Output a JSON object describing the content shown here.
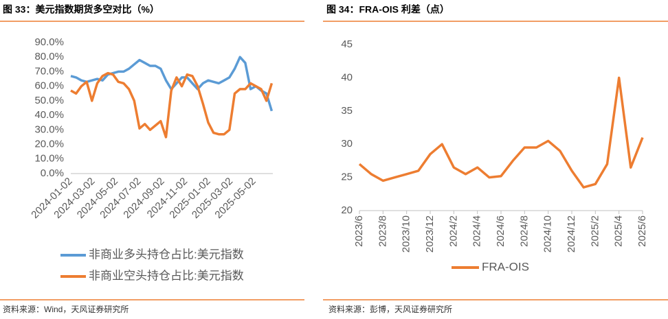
{
  "chart_data": [
    {
      "type": "line",
      "title": "图 33：美元指数期货多空对比（%）",
      "source": "资料来源：Wind，天风证券研究所",
      "x": [
        "2024-01-02",
        "2024-01-16",
        "2024-01-30",
        "2024-02-13",
        "2024-02-27",
        "2024-03-12",
        "2024-03-26",
        "2024-04-09",
        "2024-04-23",
        "2024-05-07",
        "2024-05-21",
        "2024-06-04",
        "2024-06-18",
        "2024-07-02",
        "2024-07-16",
        "2024-07-30",
        "2024-08-13",
        "2024-08-27",
        "2024-09-10",
        "2024-09-24",
        "2024-10-08",
        "2024-10-22",
        "2024-11-05",
        "2024-11-19",
        "2024-12-03",
        "2024-12-17",
        "2024-12-31",
        "2025-01-14",
        "2025-01-28",
        "2025-02-11",
        "2025-02-25",
        "2025-03-11",
        "2025-03-25",
        "2025-04-08",
        "2025-04-22",
        "2025-05-06",
        "2025-05-20",
        "2025-06-03",
        "2025-06-17"
      ],
      "xlim": [
        "2024-01-02",
        "2025-06-20"
      ],
      "xticks": [
        "2024-01-02",
        "2024-03-02",
        "2024-05-02",
        "2024-07-02",
        "2024-09-02",
        "2024-11-02",
        "2025-01-02",
        "2025-03-02",
        "2025-05-02"
      ],
      "ylim": [
        0,
        90
      ],
      "yticks": [
        {
          "value": 0,
          "label": "0.0%"
        },
        {
          "value": 10,
          "label": "10.0%"
        },
        {
          "value": 20,
          "label": "20.0%"
        },
        {
          "value": 30,
          "label": "30.0%"
        },
        {
          "value": 40,
          "label": "40.0%"
        },
        {
          "value": 50,
          "label": "50.0%"
        },
        {
          "value": 60,
          "label": "60.0%"
        },
        {
          "value": 70,
          "label": "70.0%"
        },
        {
          "value": 80,
          "label": "80.0%"
        },
        {
          "value": 90,
          "label": "90.0%"
        }
      ],
      "grid": false,
      "series": [
        {
          "name": "非商业多头持仓占比:美元指数",
          "color": "#5b9bd5",
          "values": [
            67,
            66,
            64,
            63,
            64,
            65,
            64,
            68,
            69,
            70,
            70,
            72,
            75,
            78,
            76,
            74,
            74,
            72,
            64,
            58,
            62,
            66,
            66,
            62,
            58,
            62,
            64,
            63,
            62,
            64,
            66,
            72,
            80,
            76,
            58,
            60,
            57,
            55,
            43
          ]
        },
        {
          "name": "非商业空头持仓占比:美元指数",
          "color": "#ed7d31",
          "values": [
            57,
            55,
            60,
            63,
            50,
            62,
            67,
            69,
            68,
            63,
            62,
            58,
            50,
            31,
            34,
            30,
            33,
            36,
            25,
            57,
            66,
            60,
            68,
            67,
            60,
            48,
            35,
            28,
            27,
            27,
            30,
            55,
            58,
            58,
            62,
            60,
            58,
            50,
            62
          ]
        }
      ]
    },
    {
      "type": "line",
      "title": "图 34：FRA-OIS 利差（点）",
      "source": "资料来源：彭博，天风证券研究所",
      "x": [
        "2023/6",
        "2023/7",
        "2023/8",
        "2023/9",
        "2023/10",
        "2023/11",
        "2023/12",
        "2024/1",
        "2024/2",
        "2024/3",
        "2024/4",
        "2024/5",
        "2024/6",
        "2024/7",
        "2024/8",
        "2024/9",
        "2024/10",
        "2024/11",
        "2024/12",
        "2025/1",
        "2025/2",
        "2025/3",
        "2025/4",
        "2025/5",
        "2025/6"
      ],
      "xticks": [
        "2023/6",
        "2023/8",
        "2023/10",
        "2023/12",
        "2024/2",
        "2024/4",
        "2024/6",
        "2024/8",
        "2024/10",
        "2024/12",
        "2025/2",
        "2025/4",
        "2025/6"
      ],
      "ylim": [
        20,
        45
      ],
      "yticks": [
        20,
        25,
        30,
        35,
        40,
        45
      ],
      "grid": false,
      "series": [
        {
          "name": "FRA-OIS",
          "color": "#ed7d31",
          "values": [
            27,
            25.5,
            24.5,
            25,
            25.5,
            26,
            28.5,
            30,
            26.5,
            25.5,
            26.5,
            25,
            25.2,
            27.5,
            29.5,
            29.5,
            30.5,
            29,
            26,
            23.5,
            24,
            27,
            40,
            26.5,
            31
          ]
        }
      ]
    }
  ]
}
